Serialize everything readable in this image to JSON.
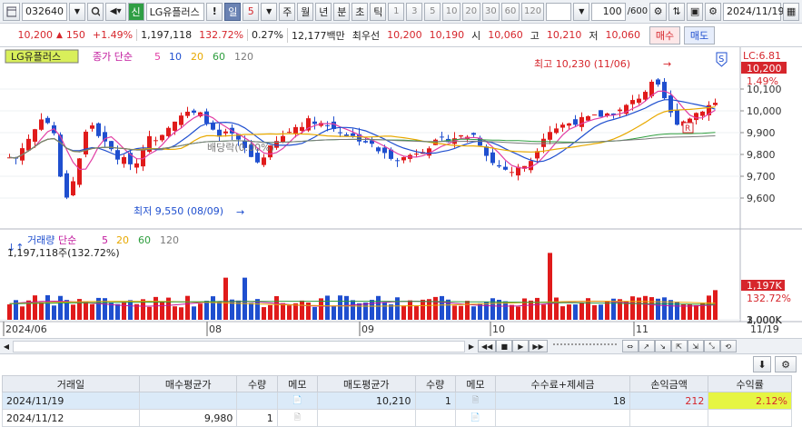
{
  "toolbar": {
    "code": "032640",
    "market": "신",
    "name": "LG유플러스",
    "period_sel": "일",
    "period_num": "5",
    "periods": [
      "주",
      "월",
      "년",
      "분",
      "초",
      "틱"
    ],
    "intervals": [
      "1",
      "3",
      "5",
      "10",
      "20",
      "30",
      "60",
      "120"
    ],
    "count": "100",
    "count_max": "/600",
    "date": "2024/11/19"
  },
  "quote": {
    "price": "10,200",
    "change": "150",
    "change_pct": "+1.49%",
    "volume": "1,197,118",
    "vol_ratio": "132.72%",
    "turnover": "0.27%",
    "amount": "12,177백만",
    "best_label": "최우선",
    "ask": "10,200",
    "bid": "10,190",
    "open_label": "시",
    "open": "10,060",
    "high_label": "고",
    "high": "10,210",
    "low_label": "저",
    "low": "10,060",
    "buy": "매수",
    "sell": "매도"
  },
  "price_panel": {
    "legend_name": "LG유플러스",
    "legend_ma": "종가 단순",
    "ma_periods": [
      "5",
      "10",
      "20",
      "60",
      "120"
    ],
    "ma_colors": [
      "#e23fa5",
      "#1f4fcf",
      "#e8a900",
      "#2e9e3e",
      "#7b7b7b"
    ],
    "lc_label": "LC:6.81",
    "current_tag": "10,200",
    "pct_tag": "1.49%",
    "y_ticks": [
      "10,100",
      "10,000",
      "9,900",
      "9,800",
      "9,700",
      "9,600"
    ],
    "high_note": "최고 10,230 (11/06)",
    "low_note": "최저 9,550 (08/09)",
    "dividend_note": "배당락(0.00%)",
    "signal_s": "S",
    "signal_r": "R"
  },
  "volume_panel": {
    "legend_label": "거래량",
    "legend_ma": "단순",
    "ma_periods": [
      "5",
      "20",
      "60",
      "120"
    ],
    "value_label": "1,197,118주(132.72%)",
    "y_ticks": [
      "3,000K",
      "2,000K",
      "1,000K"
    ],
    "current_tag": "1,197K",
    "pct_tag": "132.72%"
  },
  "x_axis": {
    "labels": [
      "2024/06",
      "08",
      "09",
      "10",
      "11"
    ],
    "end_label": "11/19"
  },
  "chart_data": {
    "type": "candlestick",
    "x_labels": [
      "2024/06",
      "08",
      "09",
      "10",
      "11",
      "11/19"
    ],
    "y_range": [
      9500,
      10250
    ],
    "volume_range": [
      0,
      3300000
    ],
    "last_close": 10200,
    "last_volume": 1197118,
    "high_marker": {
      "value": 10230,
      "date": "11/06"
    },
    "low_marker": {
      "value": 9550,
      "date": "08/09"
    }
  },
  "grid": {
    "headers": [
      "거래일",
      "매수평균가",
      "수량",
      "메모",
      "매도평균가",
      "수량",
      "메모",
      "수수료+제세금",
      "손익금액",
      "수익률"
    ],
    "rows": [
      [
        "2024/11/19",
        "",
        "",
        "📄",
        "10,210",
        "1",
        "🗎",
        "18",
        "212",
        "2.12%"
      ],
      [
        "2024/11/12",
        "9,980",
        "1",
        "🗎",
        "",
        "",
        "📄",
        "",
        "",
        ""
      ]
    ]
  }
}
